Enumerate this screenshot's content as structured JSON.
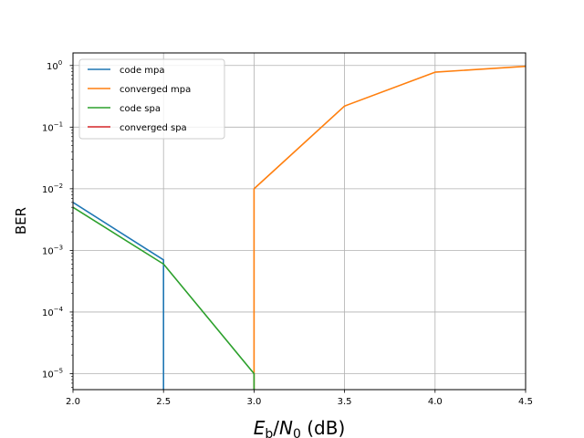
{
  "chart_data": {
    "type": "line",
    "ylabel": "BER",
    "xlabel_parts": {
      "e": "E",
      "b": "b",
      "slash": "/",
      "n": "N",
      "zero": "0",
      "unit": " (dB)"
    },
    "xlim": [
      2.0,
      4.5
    ],
    "ylim": [
      5.5e-06,
      1.6
    ],
    "yscale": "log",
    "grid": true,
    "legend_position": "top-left",
    "x_ticks": [
      {
        "value": 2.0,
        "label": "2.0"
      },
      {
        "value": 2.5,
        "label": "2.5"
      },
      {
        "value": 3.0,
        "label": "3.0"
      },
      {
        "value": 3.5,
        "label": "3.5"
      },
      {
        "value": 4.0,
        "label": "4.0"
      },
      {
        "value": 4.5,
        "label": "4.5"
      }
    ],
    "y_ticks": [
      {
        "value": 1e-05,
        "base": "10",
        "exp": "−5"
      },
      {
        "value": 0.0001,
        "base": "10",
        "exp": "−4"
      },
      {
        "value": 0.001,
        "base": "10",
        "exp": "−3"
      },
      {
        "value": 0.01,
        "base": "10",
        "exp": "−2"
      },
      {
        "value": 0.1,
        "base": "10",
        "exp": "−1"
      },
      {
        "value": 1,
        "base": "10",
        "exp": "0"
      }
    ],
    "series": [
      {
        "name": "code mpa",
        "color": "#1f77b4",
        "points": [
          [
            2.0,
            0.006
          ],
          [
            2.5,
            0.0007
          ],
          [
            2.5,
            1e-09
          ]
        ]
      },
      {
        "name": "converged mpa",
        "color": "#ff7f0e",
        "points": [
          [
            3.0,
            1e-09
          ],
          [
            3.0,
            0.01
          ],
          [
            3.5,
            0.22
          ],
          [
            4.0,
            0.78
          ],
          [
            4.5,
            0.97
          ]
        ]
      },
      {
        "name": "code spa",
        "color": "#2ca02c",
        "points": [
          [
            2.0,
            0.005
          ],
          [
            2.5,
            0.0006
          ],
          [
            3.0,
            1e-05
          ],
          [
            3.0,
            1e-09
          ]
        ]
      },
      {
        "name": "converged spa",
        "color": "#d62728",
        "points": []
      }
    ]
  }
}
